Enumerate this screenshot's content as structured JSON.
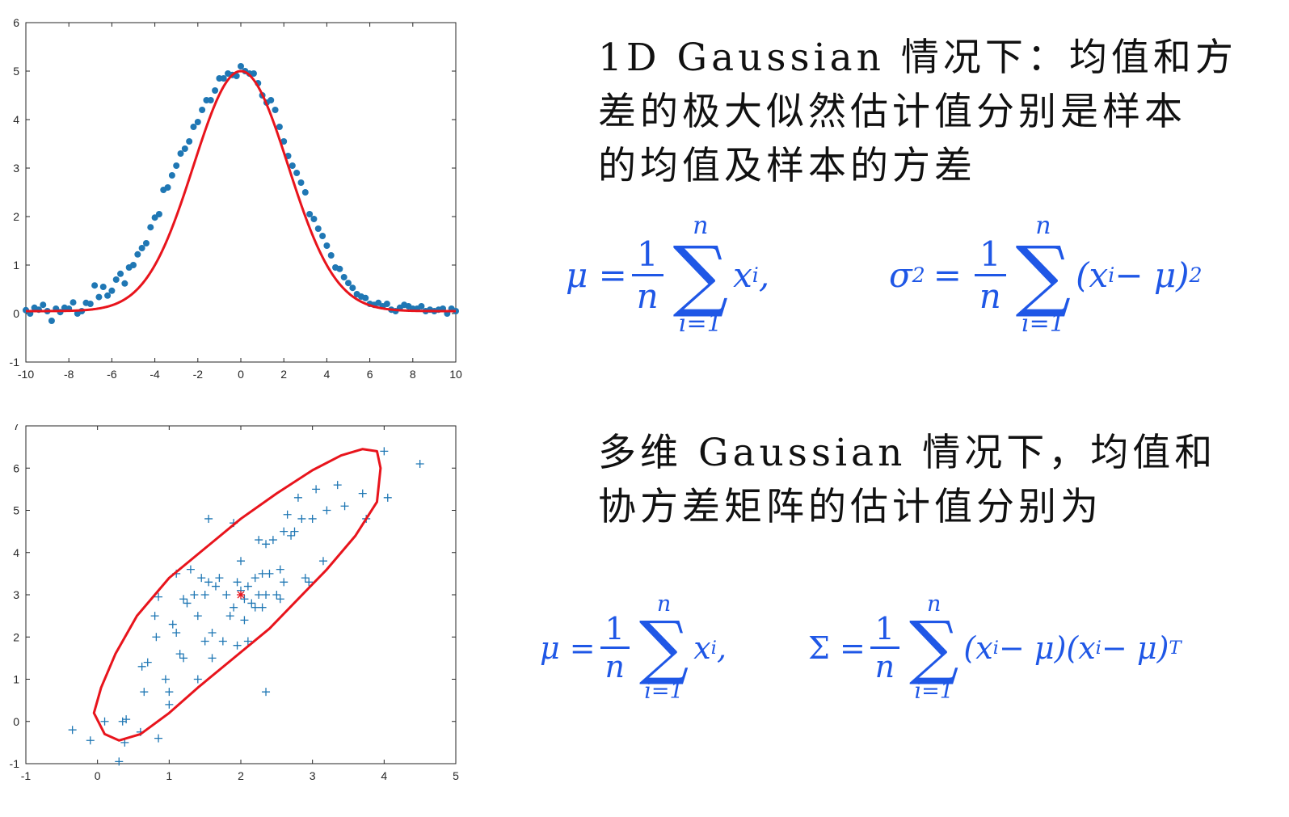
{
  "text": {
    "para1": [
      "1D Gaussian 情况下：均值和方",
      "差的极大似然估计值分别是样本",
      "的均值及样本的方差"
    ],
    "para2": [
      "多维 Gaussian 情况下，均值和",
      "协方差矩阵的估计值分别为"
    ]
  },
  "formulas": {
    "one_d": {
      "mu_lhs": "μ =",
      "num": "1",
      "den": "n",
      "sum_upper": "n",
      "sum_symbol": "∑",
      "sum_lower": "i=1",
      "mu_term": "x",
      "mu_sub": "i",
      "sep": ",",
      "sigma_lhs": "σ",
      "sigma_sup": "2",
      "eq": "=",
      "sigma_term_open": "(x",
      "sigma_term_rest": " − μ)",
      "sigma_sup2": "2"
    },
    "multi": {
      "mu_lhs": "μ =",
      "num": "1",
      "den": "n",
      "sum_upper": "n",
      "sum_symbol": "∑",
      "sum_lower": "i=1",
      "mu_term": "x",
      "mu_sub": "i",
      "sep": ",",
      "cov_lhs": "Σ =",
      "t1": "(x",
      "t1r": " − μ)",
      "t2": "(x",
      "t2r": " − μ)",
      "sup": "T"
    }
  },
  "colors": {
    "scatter": "#1f77b4",
    "fit": "#e8141c",
    "formula": "#1f57e6",
    "mean_marker": "#e8141c"
  },
  "chart_data": [
    {
      "type": "scatter",
      "title": "",
      "xlabel": "",
      "ylabel": "",
      "xlim": [
        -10,
        10
      ],
      "ylim": [
        -1,
        6
      ],
      "xticks": [
        "-10",
        "-8",
        "-6",
        "-4",
        "-2",
        "0",
        "2",
        "4",
        "6",
        "8",
        "10"
      ],
      "yticks": [
        "-1",
        "0",
        "1",
        "2",
        "3",
        "4",
        "5",
        "6"
      ],
      "series": [
        {
          "marker": "dot",
          "x": [
            -10,
            -9.8,
            -9.6,
            -9.4,
            -9.2,
            -9,
            -8.8,
            -8.6,
            -8.4,
            -8.2,
            -8,
            -7.8,
            -7.6,
            -7.4,
            -7.2,
            -7,
            -6.8,
            -6.6,
            -6.4,
            -6.2,
            -6,
            -5.8,
            -5.6,
            -5.4,
            -5.2,
            -5,
            -4.8,
            -4.6,
            -4.4,
            -4.2,
            -4,
            -3.8,
            -3.6,
            -3.4,
            -3.2,
            -3,
            -2.8,
            -2.6,
            -2.4,
            -2.2,
            -2,
            -1.8,
            -1.6,
            -1.4,
            -1.2,
            -1,
            -0.8,
            -0.6,
            -0.4,
            -0.2,
            0,
            0.2,
            0.4,
            0.6,
            0.8,
            1,
            1.2,
            1.4,
            1.6,
            1.8,
            2,
            2.2,
            2.4,
            2.6,
            2.8,
            3,
            3.2,
            3.4,
            3.6,
            3.8,
            4,
            4.2,
            4.4,
            4.6,
            4.8,
            5,
            5.2,
            5.4,
            5.6,
            5.8,
            6,
            6.2,
            6.4,
            6.6,
            6.8,
            7,
            7.2,
            7.4,
            7.6,
            7.8,
            8,
            8.2,
            8.4,
            8.6,
            8.8,
            9,
            9.2,
            9.4,
            9.6,
            9.8,
            10
          ],
          "y": [
            0.07,
            0.0,
            0.12,
            0.08,
            0.18,
            0.05,
            -0.15,
            0.1,
            0.03,
            0.12,
            0.1,
            0.23,
            0.0,
            0.05,
            0.22,
            0.2,
            0.58,
            0.34,
            0.55,
            0.37,
            0.47,
            0.7,
            0.82,
            0.62,
            0.95,
            1.0,
            1.22,
            1.35,
            1.45,
            1.78,
            1.98,
            2.05,
            2.55,
            2.6,
            2.85,
            3.05,
            3.3,
            3.4,
            3.55,
            3.85,
            3.95,
            4.2,
            4.4,
            4.4,
            4.6,
            4.85,
            4.85,
            4.95,
            4.92,
            4.9,
            5.1,
            5.0,
            4.95,
            4.95,
            4.75,
            4.5,
            4.35,
            4.4,
            4.2,
            3.85,
            3.55,
            3.25,
            3.05,
            2.9,
            2.7,
            2.5,
            2.05,
            1.95,
            1.75,
            1.6,
            1.4,
            1.2,
            0.95,
            0.92,
            0.75,
            0.63,
            0.53,
            0.4,
            0.35,
            0.32,
            0.2,
            0.18,
            0.22,
            0.15,
            0.2,
            0.08,
            0.05,
            0.12,
            0.18,
            0.15,
            0.1,
            0.1,
            0.15,
            0.05,
            0.08,
            0.05,
            0.08,
            0.1,
            0.0,
            0.1,
            0.05
          ]
        },
        {
          "type": "line",
          "function": "gaussian",
          "amplitude": 4.95,
          "mean": 0,
          "sigma": 2.2,
          "offset": 0.05
        }
      ]
    },
    {
      "type": "scatter",
      "title": "",
      "xlabel": "",
      "ylabel": "",
      "xlim": [
        -1,
        5
      ],
      "ylim": [
        -1,
        7
      ],
      "xticks": [
        "-1",
        "0",
        "1",
        "2",
        "3",
        "4",
        "5"
      ],
      "yticks": [
        "-1",
        "0",
        "1",
        "2",
        "3",
        "4",
        "5",
        "6",
        "7"
      ],
      "mean": [
        2.0,
        3.0
      ],
      "series": [
        {
          "marker": "plus",
          "x": [
            -0.35,
            -0.1,
            0.1,
            0.3,
            0.4,
            0.38,
            0.6,
            0.62,
            0.65,
            0.7,
            0.85,
            0.85,
            0.82,
            0.8,
            0.95,
            1.0,
            1.0,
            1.05,
            1.1,
            1.1,
            1.2,
            1.2,
            1.25,
            1.35,
            1.4,
            1.4,
            1.45,
            1.5,
            1.5,
            1.55,
            1.6,
            1.6,
            1.65,
            1.7,
            1.75,
            1.8,
            1.85,
            1.9,
            1.95,
            1.95,
            2.0,
            2.0,
            2.05,
            2.05,
            2.1,
            2.1,
            2.15,
            2.2,
            2.2,
            2.25,
            2.25,
            2.3,
            2.3,
            2.35,
            2.35,
            2.4,
            2.45,
            2.5,
            2.55,
            2.55,
            2.6,
            2.6,
            2.65,
            2.7,
            2.75,
            2.8,
            2.85,
            2.9,
            2.95,
            3.0,
            3.05,
            3.15,
            3.2,
            3.35,
            3.45,
            3.7,
            3.75,
            4.0,
            4.05,
            4.5,
            2.35,
            1.55,
            1.9,
            0.35,
            1.15,
            1.3
          ],
          "y": [
            -0.2,
            -0.45,
            0.0,
            -0.95,
            0.05,
            -0.5,
            -0.25,
            1.3,
            0.7,
            1.4,
            -0.4,
            2.95,
            2.0,
            2.5,
            1.0,
            0.4,
            0.7,
            2.3,
            3.5,
            2.1,
            2.9,
            1.5,
            2.8,
            3.0,
            1.0,
            2.5,
            3.4,
            1.9,
            3.0,
            4.8,
            1.5,
            2.1,
            3.2,
            3.4,
            1.9,
            3.0,
            2.5,
            4.7,
            3.3,
            1.8,
            3.1,
            3.8,
            2.9,
            2.4,
            1.9,
            3.2,
            2.8,
            3.4,
            2.7,
            3.0,
            4.3,
            2.7,
            3.5,
            4.2,
            3.0,
            3.5,
            4.3,
            3.0,
            3.6,
            2.9,
            4.5,
            3.3,
            4.9,
            4.4,
            4.5,
            5.3,
            4.8,
            3.4,
            3.3,
            4.8,
            5.5,
            3.8,
            5.0,
            5.6,
            5.1,
            5.4,
            4.8,
            6.4,
            5.3,
            6.1,
            0.7,
            3.3,
            2.7,
            0.0,
            1.6,
            3.6
          ]
        }
      ],
      "ellipse": {
        "points_x": [
          -0.05,
          0.05,
          0.25,
          0.55,
          1.0,
          1.5,
          2.0,
          2.5,
          3.0,
          3.4,
          3.7,
          3.9,
          3.95,
          3.9,
          3.6,
          3.2,
          2.8,
          2.4,
          1.9,
          1.4,
          1.0,
          0.6,
          0.3,
          0.1,
          -0.05
        ],
        "points_y": [
          0.2,
          0.8,
          1.6,
          2.5,
          3.4,
          4.1,
          4.8,
          5.4,
          5.95,
          6.3,
          6.45,
          6.4,
          6.0,
          5.2,
          4.4,
          3.6,
          2.9,
          2.2,
          1.5,
          0.8,
          0.2,
          -0.3,
          -0.45,
          -0.3,
          0.2
        ]
      }
    }
  ]
}
